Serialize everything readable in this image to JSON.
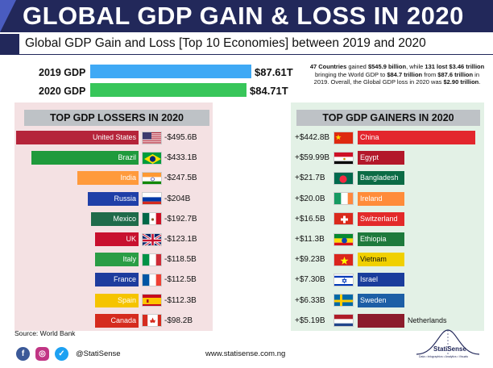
{
  "header": {
    "title": "GLOBAL GDP GAIN & LOSS IN 2020"
  },
  "subtitle": "Global GDP Gain and Loss [Top 10 Economies] between 2019 and 2020",
  "totals": [
    {
      "label": "2019 GDP",
      "value_label": "$87.61T",
      "value": 87.61,
      "color": "#3fa9f5"
    },
    {
      "label": "2020 GDP",
      "value_label": "$84.71T",
      "value": 84.71,
      "color": "#38c65a"
    }
  ],
  "note": {
    "p1": "47 Countries",
    "p2": " gained ",
    "p3": "$545.9 billion",
    "p4": ", while ",
    "p5": "131 lost $3.46 trillion",
    "p6": " bringing the World GDP to ",
    "p7": "$84.7 trillion",
    "p8": " from ",
    "p9": "$87.6 trillion",
    "p10": " in 2019.",
    "p11": "Overall, the Global GDP loss in 2020 was ",
    "p12": "$2.90 trillion",
    "p13": "."
  },
  "chart_data": [
    {
      "type": "bar",
      "title": "TOP GDP LOSSERS IN 2020",
      "categories": [
        "United States",
        "Brazil",
        "India",
        "Russia",
        "Mexico",
        "UK",
        "Italy",
        "France",
        "Spain",
        "Canada"
      ],
      "values": [
        -495.6,
        -433.1,
        -247.5,
        -204,
        -192.7,
        -123.1,
        -118.5,
        -112.5,
        -112.3,
        -98.2
      ],
      "value_labels": [
        "-$495.6B",
        "-$433.1B",
        "-$247.5B",
        "-$204B",
        "-$192.7B",
        "-$123.1B",
        "-$118.5B",
        "-$112.5B",
        "-$112.3B",
        "-$98.2B"
      ],
      "colors": [
        "#b5243a",
        "#1f9a3c",
        "#ff9a3c",
        "#1f3fa8",
        "#1f6b4a",
        "#c8102e",
        "#2a9d45",
        "#1e3c9e",
        "#f5c400",
        "#d52b1e"
      ]
    },
    {
      "type": "bar",
      "title": "TOP GDP GAINERS IN 2020",
      "categories": [
        "China",
        "Egypt",
        "Bangladesh",
        "Ireland",
        "Switzerland",
        "Ethiopia",
        "Vietnam",
        "Israel",
        "Sweden",
        "Netherlands"
      ],
      "values": [
        442.8,
        59.99,
        21.7,
        20.0,
        16.5,
        11.3,
        9.23,
        7.3,
        6.33,
        5.19
      ],
      "value_labels": [
        "+$442.8B",
        "+$59.99B",
        "+$21.7B",
        "+$20.0B",
        "+$16.5B",
        "+$11.3B",
        "+$9.23B",
        "+$7.30B",
        "+$6.33B",
        "+$5.19B"
      ],
      "colors": [
        "#e3262d",
        "#b3182a",
        "#0b6b45",
        "#ff8c3a",
        "#e32a2a",
        "#1e7a3c",
        "#f0d000",
        "#1a3d9c",
        "#1d5fa6",
        "#8c1c2c"
      ]
    }
  ],
  "footer": {
    "source": "Source: World Bank",
    "handle": "@StatiSense",
    "website": "www.statisense.com.ng",
    "logo": "StatiSense",
    "logo_tagline": "Data • Infographics • Analytics • Visuals",
    "icons": [
      "facebook-icon",
      "instagram-icon",
      "twitter-icon"
    ]
  }
}
